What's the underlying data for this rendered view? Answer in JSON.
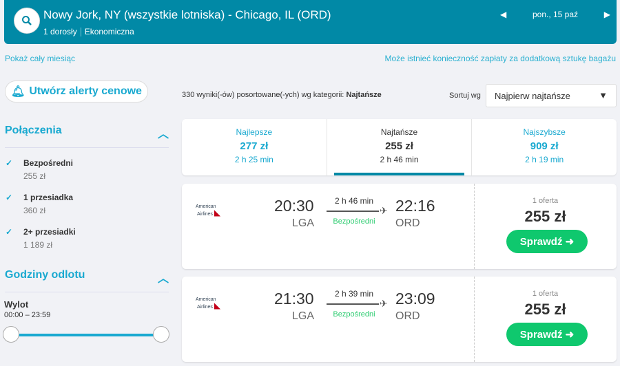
{
  "header": {
    "title": "Nowy Jork, NY (wszystkie lotniska) - Chicago, IL (ORD)",
    "passengers": "1 dorosły",
    "cabin": "Ekonomiczna",
    "date": "pon., 15 paź",
    "accent": "#0189a6"
  },
  "links": {
    "month": "Pokaż cały miesiąc",
    "baggage": "Może istnieć konieczność zapłaty za dodatkową sztukę bagażu"
  },
  "alert_button": "Utwórz alerty cenowe",
  "results_summary": {
    "text": "330 wyniki(-ów) posortowane(-ych) wg kategorii: ",
    "category": "Najtańsze"
  },
  "sort": {
    "label": "Sortuj wg",
    "value": "Najpierw najtańsze"
  },
  "filters": {
    "connections": {
      "title": "Połączenia",
      "items": [
        {
          "label": "Bezpośredni",
          "price": "255 zł"
        },
        {
          "label": "1 przesiadka",
          "price": "360 zł"
        },
        {
          "label": "2+ przesiadki",
          "price": "1 189 zł"
        }
      ]
    },
    "times": {
      "title": "Godziny odlotu",
      "label": "Wylot",
      "range": "00:00 – 23:59"
    }
  },
  "tabs": [
    {
      "label": "Najlepsze",
      "price": "277 zł",
      "duration": "2 h 25 min"
    },
    {
      "label": "Najtańsze",
      "price": "255 zł",
      "duration": "2 h 46 min"
    },
    {
      "label": "Najszybsze",
      "price": "909 zł",
      "duration": "2 h 19 min"
    }
  ],
  "flights": [
    {
      "airline": "American Airlines",
      "dep": "20:30",
      "dep_ap": "LGA",
      "arr": "22:16",
      "arr_ap": "ORD",
      "duration": "2 h 46 min",
      "stops": "Bezpośredni",
      "offers": "1 oferta",
      "price": "255 zł",
      "cta": "Sprawdź"
    },
    {
      "airline": "American Airlines",
      "dep": "21:30",
      "dep_ap": "LGA",
      "arr": "23:09",
      "arr_ap": "ORD",
      "duration": "2 h 39 min",
      "stops": "Bezpośredni",
      "offers": "1 oferta",
      "price": "255 zł",
      "cta": "Sprawdź"
    }
  ]
}
